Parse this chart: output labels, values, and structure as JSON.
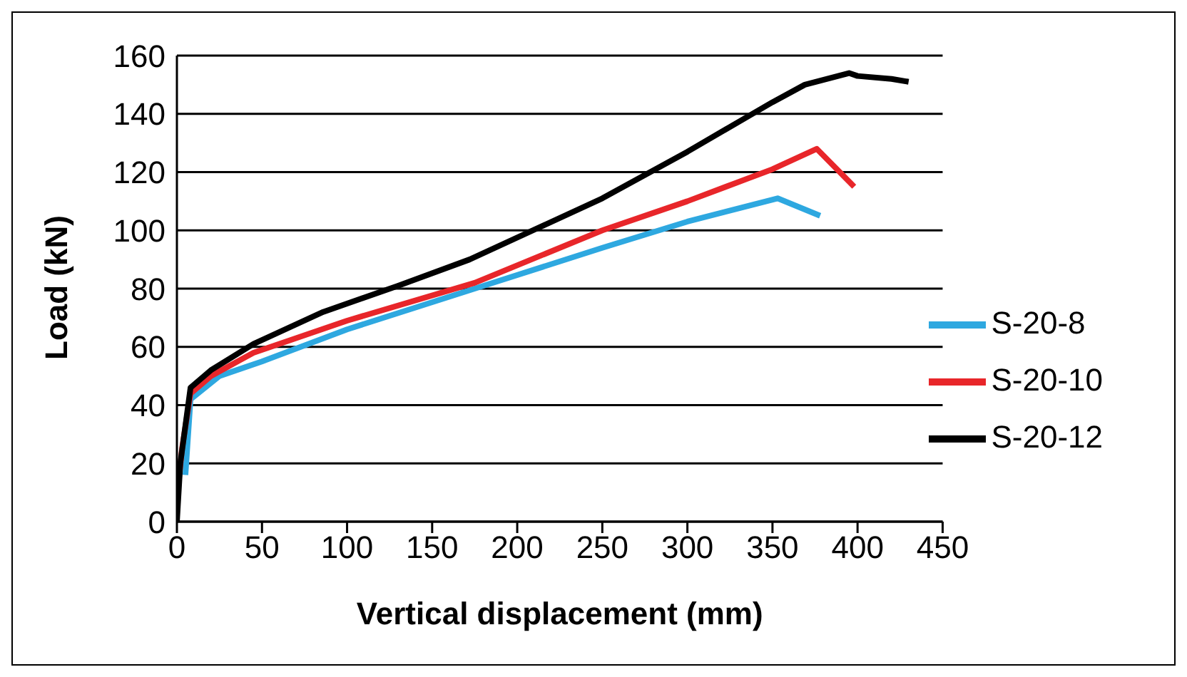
{
  "chart_data": {
    "type": "line",
    "xlabel": "Vertical displacement (mm)",
    "ylabel": "Load (kN)",
    "xlim": [
      0,
      450
    ],
    "xticks": [
      0,
      50,
      100,
      150,
      200,
      250,
      300,
      350,
      400,
      450
    ],
    "ylim": [
      0,
      160
    ],
    "yticks": [
      0,
      20,
      40,
      60,
      80,
      100,
      120,
      140,
      160
    ],
    "grid": "y",
    "legend": "right",
    "marker": "none",
    "line_style": "solid",
    "series": [
      {
        "name": "S-20-8",
        "color": "#2ea8e0",
        "x": [
          5,
          8,
          25,
          50,
          100,
          175,
          250,
          300,
          353,
          378
        ],
        "values": [
          16,
          42,
          50,
          55,
          66,
          80,
          94,
          103,
          111,
          105
        ]
      },
      {
        "name": "S-20-10",
        "color": "#e8262a",
        "x": [
          0,
          3,
          8,
          20,
          45,
          100,
          175,
          250,
          300,
          350,
          376,
          398
        ],
        "values": [
          8,
          25,
          44,
          50,
          58,
          69,
          82,
          100,
          110,
          121,
          128,
          115
        ]
      },
      {
        "name": "S-20-12",
        "color": "#000000",
        "x": [
          0,
          2,
          8,
          20,
          45,
          86,
          130,
          172,
          250,
          300,
          350,
          369,
          395,
          400,
          420,
          430
        ],
        "values": [
          0,
          20,
          46,
          52,
          61,
          72,
          81,
          90,
          111,
          127,
          144,
          150,
          154,
          153,
          152,
          151
        ]
      }
    ]
  }
}
